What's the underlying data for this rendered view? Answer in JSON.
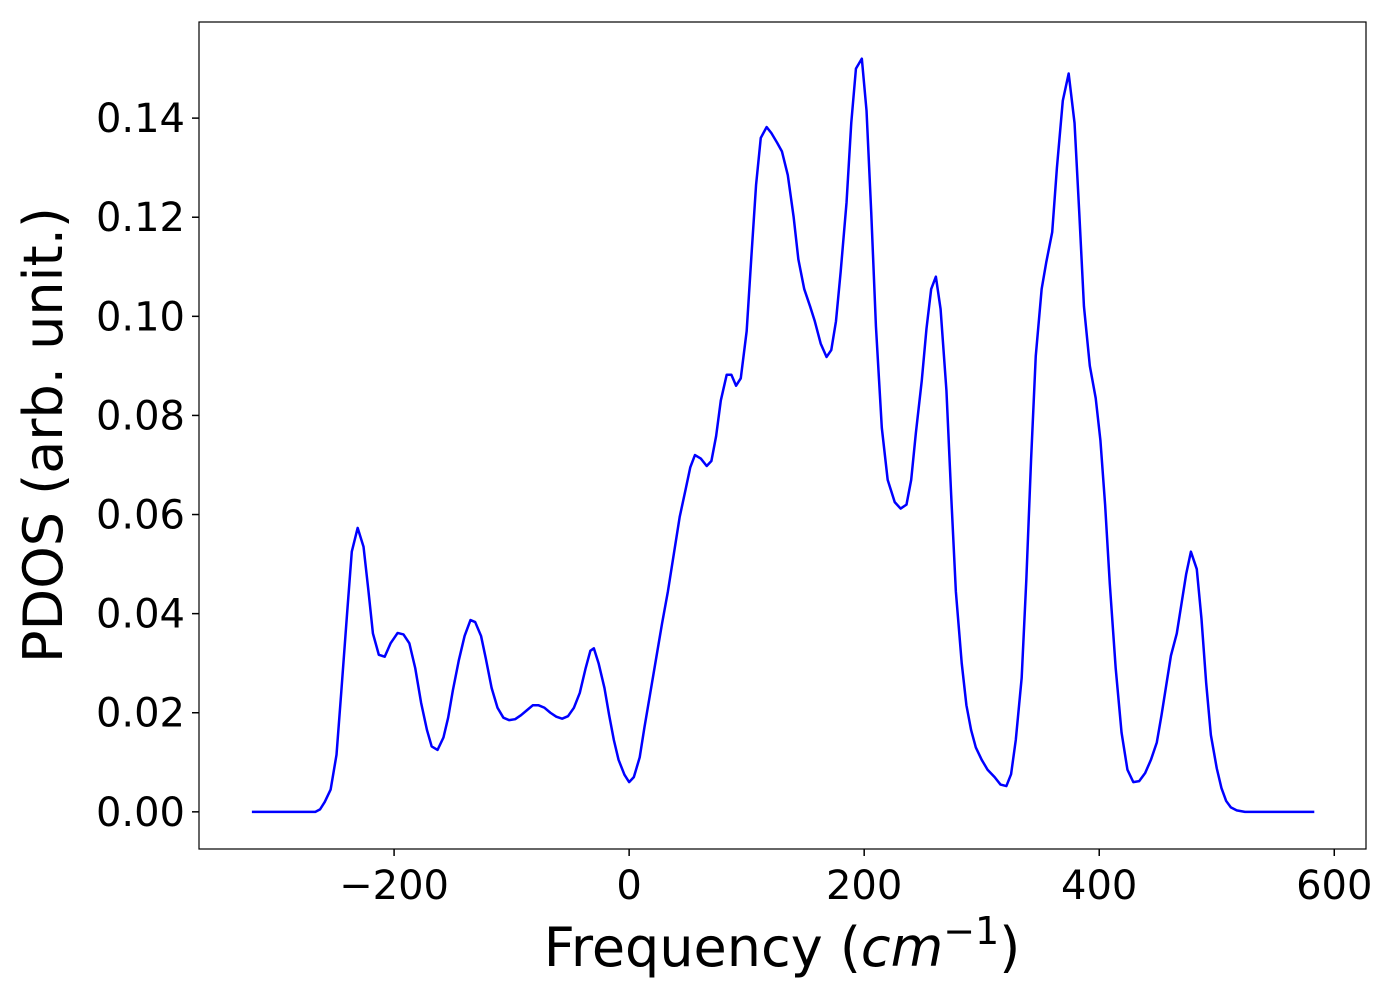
{
  "chart_data": {
    "type": "line",
    "xlabel": "Frequency (cm−1)",
    "ylabel": "PDOS (arb. unit.)",
    "xlim": [
      -366,
      627
    ],
    "ylim": [
      -0.0075,
      0.1594
    ],
    "xticks": [
      {
        "value": -200,
        "label": "−200"
      },
      0,
      200,
      400,
      600
    ],
    "yticks": [
      {
        "value": 0,
        "label": "0.00"
      },
      0.02,
      0.04,
      0.06,
      0.08,
      {
        "value": 0.1,
        "label": "0.10"
      },
      0.12,
      0.14
    ],
    "grid": false,
    "series": [
      {
        "color": "#0000ff",
        "x": [
          -321,
          -267,
          -263,
          -259,
          -254,
          -249,
          -245,
          -240,
          -236,
          -231,
          -226,
          -222,
          -218,
          -213,
          -208,
          -203,
          -197,
          -192,
          -187,
          -182,
          -177,
          -172,
          -168,
          -163,
          -158,
          -154,
          -150,
          -145,
          -140,
          -135,
          -131,
          -126,
          -122,
          -117,
          -112,
          -107,
          -102,
          -97,
          -92,
          -87,
          -82,
          -77,
          -72,
          -67,
          -62,
          -57,
          -52,
          -47,
          -42,
          -37,
          -33,
          -30,
          -26,
          -21,
          -17,
          -13,
          -9,
          -4,
          0,
          4,
          9,
          13,
          18,
          23,
          28,
          33,
          38,
          43,
          48,
          52,
          56,
          61,
          66,
          70,
          74,
          78,
          83,
          87,
          91,
          95,
          100,
          104,
          108,
          112,
          117,
          121,
          126,
          130,
          135,
          140,
          144,
          149,
          154,
          158,
          163,
          168,
          172,
          176,
          180,
          185,
          189,
          193,
          198,
          202,
          206,
          210,
          215,
          220,
          226,
          231,
          236,
          240,
          244,
          249,
          253,
          257,
          261,
          265,
          270,
          274,
          278,
          283,
          287,
          291,
          295,
          300,
          305,
          311,
          316,
          321,
          325,
          329,
          334,
          338,
          342,
          346,
          351,
          355,
          360,
          364,
          369,
          374,
          379,
          383,
          387,
          392,
          397,
          401,
          405,
          409,
          414,
          419,
          424,
          429,
          434,
          439,
          444,
          449,
          453,
          457,
          461,
          466,
          470,
          474,
          478,
          483,
          487,
          491,
          495,
          500,
          504,
          508,
          512,
          517,
          524,
          583
        ],
        "values": [
          0,
          0,
          0.0005,
          0.002,
          0.0045,
          0.0115,
          0.024,
          0.04,
          0.0525,
          0.0573,
          0.0535,
          0.045,
          0.036,
          0.0317,
          0.0313,
          0.034,
          0.0361,
          0.0358,
          0.034,
          0.029,
          0.022,
          0.0165,
          0.0132,
          0.0125,
          0.015,
          0.019,
          0.0245,
          0.0305,
          0.0355,
          0.0387,
          0.0383,
          0.0355,
          0.031,
          0.025,
          0.021,
          0.019,
          0.0185,
          0.0187,
          0.0195,
          0.0205,
          0.0215,
          0.0215,
          0.021,
          0.02,
          0.0192,
          0.0188,
          0.0193,
          0.021,
          0.024,
          0.029,
          0.0325,
          0.033,
          0.03,
          0.025,
          0.0195,
          0.0145,
          0.0105,
          0.0075,
          0.006,
          0.007,
          0.011,
          0.017,
          0.024,
          0.031,
          0.038,
          0.0445,
          0.052,
          0.0595,
          0.065,
          0.0695,
          0.072,
          0.0713,
          0.0698,
          0.0708,
          0.0758,
          0.083,
          0.0882,
          0.0882,
          0.086,
          0.0875,
          0.097,
          0.112,
          0.1265,
          0.136,
          0.1382,
          0.137,
          0.135,
          0.1333,
          0.1285,
          0.12,
          0.1115,
          0.1055,
          0.102,
          0.099,
          0.0945,
          0.0918,
          0.0932,
          0.099,
          0.109,
          0.123,
          0.139,
          0.15,
          0.152,
          0.1415,
          0.121,
          0.098,
          0.0775,
          0.067,
          0.0625,
          0.0612,
          0.062,
          0.067,
          0.0765,
          0.087,
          0.0975,
          0.1055,
          0.108,
          0.1015,
          0.085,
          0.064,
          0.0445,
          0.03,
          0.0215,
          0.0165,
          0.013,
          0.0105,
          0.0085,
          0.007,
          0.0055,
          0.0052,
          0.0076,
          0.0145,
          0.027,
          0.047,
          0.071,
          0.092,
          0.1055,
          0.111,
          0.117,
          0.13,
          0.1435,
          0.149,
          0.139,
          0.121,
          0.102,
          0.09,
          0.0835,
          0.075,
          0.062,
          0.046,
          0.029,
          0.016,
          0.0085,
          0.006,
          0.0062,
          0.0078,
          0.0105,
          0.014,
          0.0195,
          0.0255,
          0.0315,
          0.036,
          0.042,
          0.048,
          0.0525,
          0.049,
          0.039,
          0.026,
          0.0155,
          0.0088,
          0.0048,
          0.0022,
          0.0009,
          0.0003,
          0,
          0
        ]
      }
    ]
  }
}
